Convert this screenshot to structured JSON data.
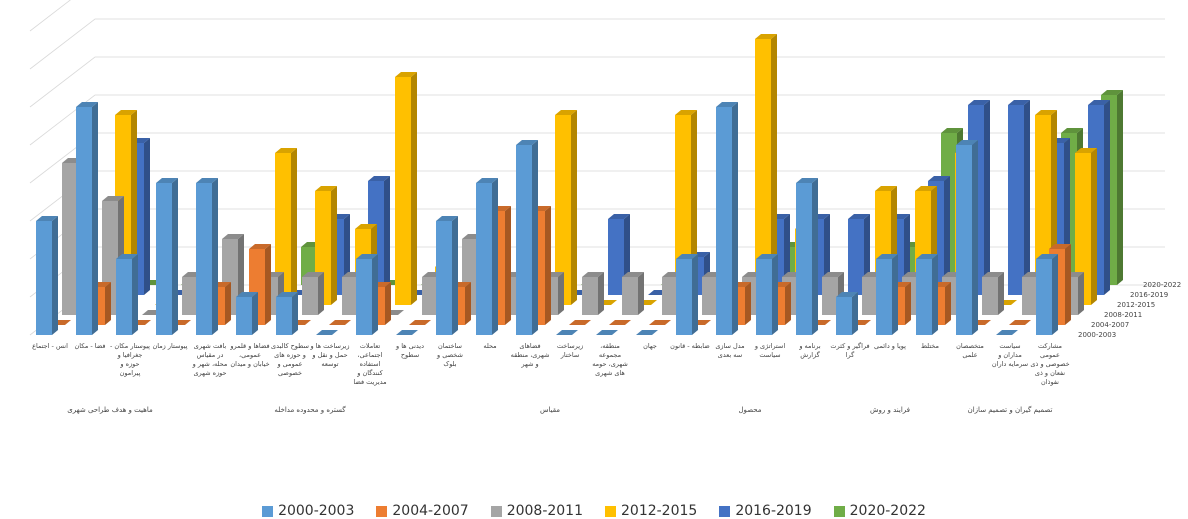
{
  "chart_data": {
    "type": "bar3d",
    "categories": [
      "انس - اجتماع",
      "فضا - مکان",
      "پیوستار مکان - جغرافیا و حوزه و پیرامون",
      "پیوستار زمان",
      "بافت شهری در مقیاس محله، شهر و حوزه شهری",
      "فضاها و قلمرو عمومی، خیابان و میدان",
      "سطوح کالبدی و حوزه های عمومی و خصوصی",
      "زیرساخت ها و حمل و نقل و توسعه",
      "تعاملات اجتماعی، استفاده کنندگان و مدیریت فضا",
      "دیدنی ها و سطوح",
      "ساختمان شخصی و بلوک",
      "محله",
      "فضاهای شهری، منطقه و شهر",
      "زیرساخت ساختار",
      "منطقه، مجموعه شهری، حومه های شهری",
      "جهان",
      "ضابطه - قانون",
      "مدل سازی سه بعدی",
      "استراتژی و سیاست",
      "برنامه و گزارش",
      "فراگیر و کثرت گرا",
      "پویا و دائمی",
      "مختلط",
      "متخصصان علمی",
      "سیاست مداران و سرمایه داران",
      "مشارکت عمومی خصوصی و ذی نفعان و ذی نفوذان"
    ],
    "groups": [
      {
        "label": "ماهیت و هدف طراحی شهری",
        "span": 4
      },
      {
        "label": "گستره و محدوده مداخله",
        "span": 6
      },
      {
        "label": "مقیاس",
        "span": 6
      },
      {
        "label": "محصول",
        "span": 4
      },
      {
        "label": "فرایند و روش",
        "span": 3
      },
      {
        "label": "تصمیم گیران و تصمیم سازان",
        "span": 3
      }
    ],
    "series": [
      {
        "name": "2000-2003",
        "color": "#5b9bd5",
        "values": [
          3,
          6,
          2,
          4,
          4,
          1,
          1,
          0,
          2,
          0,
          3,
          4,
          5,
          0,
          0,
          0,
          2,
          6,
          2,
          4,
          1,
          2,
          2,
          5,
          0,
          2
        ]
      },
      {
        "name": "2004-2007",
        "color": "#ed7d31",
        "values": [
          0,
          1,
          0,
          0,
          1,
          2,
          0,
          0,
          1,
          0,
          1,
          3,
          3,
          0,
          0,
          0,
          0,
          1,
          1,
          0,
          0,
          1,
          1,
          0,
          0,
          2
        ]
      },
      {
        "name": "2008-2011",
        "color": "#a5a5a5",
        "values": [
          4,
          3,
          0,
          1,
          2,
          1,
          1,
          1,
          0,
          1,
          2,
          1,
          1,
          1,
          1,
          1,
          1,
          1,
          1,
          1,
          1,
          1,
          1,
          1,
          1,
          1
        ]
      },
      {
        "name": "2012-2015",
        "color": "#ffc000",
        "values": [
          0,
          5,
          0,
          0,
          0,
          4,
          3,
          2,
          6,
          1,
          0,
          0,
          5,
          0,
          0,
          5,
          0,
          7,
          2,
          0,
          3,
          3,
          4,
          0,
          5,
          4
        ]
      },
      {
        "name": "2016-2019",
        "color": "#4472c4",
        "values": [
          0,
          4,
          0,
          0,
          0,
          0,
          2,
          3,
          0,
          0,
          0,
          0,
          0,
          2,
          0,
          1,
          0,
          2,
          2,
          2,
          2,
          3,
          5,
          5,
          4,
          5
        ]
      },
      {
        "name": "2020-2022",
        "color": "#70ad47",
        "values": [
          0,
          0,
          0,
          0,
          0,
          1,
          0,
          0,
          0,
          0,
          0,
          0,
          0,
          0,
          0,
          0,
          0,
          1,
          0,
          0,
          1,
          4,
          0,
          0,
          4,
          5
        ]
      }
    ],
    "ylim": [
      0,
      8
    ],
    "yticks": [
      0,
      1,
      2,
      3,
      4,
      5,
      6,
      7,
      8
    ],
    "grid": true,
    "legend": "bottom"
  }
}
